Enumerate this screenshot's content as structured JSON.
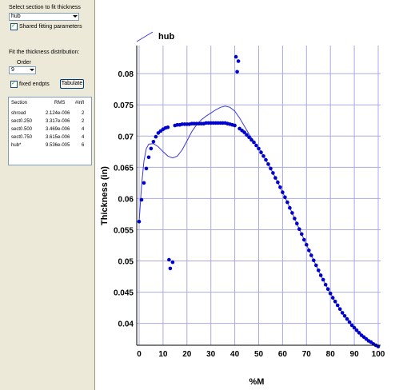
{
  "panel": {
    "select_label": "Select section to fit thickness",
    "section_value": "hub",
    "shared_label": "Shared fitting parameters",
    "fit_label": "Fit the thickness distribution:",
    "order_label": "Order",
    "order_value": "9",
    "fixed_label": "fixed endpts",
    "tabulate_label": "Tabulate",
    "table": {
      "headers": [
        "Section",
        "RMS",
        "#infl"
      ],
      "rows": [
        {
          "section": "shroud",
          "rms": "2.124e-006",
          "infl": "2"
        },
        {
          "section": "sect0.250",
          "rms": "3.317e-006",
          "infl": "2"
        },
        {
          "section": "sect0.500",
          "rms": "3.469e-006",
          "infl": "4"
        },
        {
          "section": "sect0.750",
          "rms": "3.615e-006",
          "infl": "4"
        },
        {
          "section": "hub*",
          "rms": "9.536e-005",
          "infl": "6"
        }
      ]
    }
  },
  "chart_data": {
    "type": "scatter",
    "xlabel": "%M",
    "ylabel": "Thickness (in)",
    "xlim": [
      -1,
      101
    ],
    "ylim": [
      0.0365,
      0.0845
    ],
    "xticks": [
      0,
      10,
      20,
      30,
      40,
      50,
      60,
      70,
      80,
      90,
      100
    ],
    "yticks": [
      0.04,
      0.045,
      0.05,
      0.055,
      0.06,
      0.065,
      0.07,
      0.075,
      0.08
    ],
    "ytick_labels": [
      "0.04",
      "0.045",
      "0.05",
      "0.055",
      "0.06",
      "0.065",
      "0.07",
      "0.075",
      "0.08"
    ],
    "grid": true,
    "legend": {
      "label": "hub",
      "placement": "top-left"
    },
    "colors": {
      "points": "#0000cc",
      "line": "#3a3ad8",
      "grid": "#ababe0"
    },
    "points": [
      [
        0,
        0.0563
      ],
      [
        1,
        0.0598
      ],
      [
        2,
        0.0625
      ],
      [
        3,
        0.0648
      ],
      [
        4,
        0.0666
      ],
      [
        5,
        0.068
      ],
      [
        6,
        0.0691
      ],
      [
        7,
        0.0699
      ],
      [
        8,
        0.0705
      ],
      [
        9,
        0.0708
      ],
      [
        10,
        0.0711
      ],
      [
        11,
        0.0713
      ],
      [
        12,
        0.0714
      ],
      [
        12.5,
        0.0502
      ],
      [
        13,
        0.0488
      ],
      [
        14,
        0.0498
      ],
      [
        15,
        0.0717
      ],
      [
        16,
        0.0718
      ],
      [
        17,
        0.0718
      ],
      [
        18,
        0.0719
      ],
      [
        19,
        0.0719
      ],
      [
        20,
        0.0719
      ],
      [
        21,
        0.0719
      ],
      [
        22,
        0.072
      ],
      [
        23,
        0.072
      ],
      [
        24,
        0.072
      ],
      [
        25,
        0.072
      ],
      [
        26,
        0.072
      ],
      [
        27,
        0.072
      ],
      [
        28,
        0.0721
      ],
      [
        29,
        0.0721
      ],
      [
        30,
        0.0721
      ],
      [
        31,
        0.0721
      ],
      [
        32,
        0.0721
      ],
      [
        33,
        0.0721
      ],
      [
        34,
        0.0721
      ],
      [
        35,
        0.0721
      ],
      [
        36,
        0.0721
      ],
      [
        37,
        0.072
      ],
      [
        38,
        0.0719
      ],
      [
        39,
        0.0718
      ],
      [
        40,
        0.0717
      ],
      [
        40.5,
        0.0827
      ],
      [
        41,
        0.0803
      ],
      [
        41.5,
        0.082
      ],
      [
        42,
        0.0712
      ],
      [
        43,
        0.0709
      ],
      [
        44,
        0.0706
      ],
      [
        45,
        0.0702
      ],
      [
        46,
        0.0698
      ],
      [
        47,
        0.0694
      ],
      [
        48,
        0.069
      ],
      [
        49,
        0.0685
      ],
      [
        50,
        0.068
      ],
      [
        51,
        0.0674
      ],
      [
        52,
        0.0668
      ],
      [
        53,
        0.0662
      ],
      [
        54,
        0.0655
      ],
      [
        55,
        0.0648
      ],
      [
        56,
        0.0641
      ],
      [
        57,
        0.0633
      ],
      [
        58,
        0.0626
      ],
      [
        59,
        0.0618
      ],
      [
        60,
        0.061
      ],
      [
        61,
        0.0602
      ],
      [
        62,
        0.0594
      ],
      [
        63,
        0.0585
      ],
      [
        64,
        0.0577
      ],
      [
        65,
        0.0568
      ],
      [
        66,
        0.056
      ],
      [
        67,
        0.0551
      ],
      [
        68,
        0.0543
      ],
      [
        69,
        0.0534
      ],
      [
        70,
        0.0526
      ],
      [
        71,
        0.0517
      ],
      [
        72,
        0.0509
      ],
      [
        73,
        0.0501
      ],
      [
        74,
        0.0493
      ],
      [
        75,
        0.0485
      ],
      [
        76,
        0.0477
      ],
      [
        77,
        0.047
      ],
      [
        78,
        0.0462
      ],
      [
        79,
        0.0455
      ],
      [
        80,
        0.0448
      ],
      [
        81,
        0.0441
      ],
      [
        82,
        0.0435
      ],
      [
        83,
        0.0429
      ],
      [
        84,
        0.0423
      ],
      [
        85,
        0.0417
      ],
      [
        86,
        0.0412
      ],
      [
        87,
        0.0407
      ],
      [
        88,
        0.0402
      ],
      [
        89,
        0.0397
      ],
      [
        90,
        0.0393
      ],
      [
        91,
        0.0389
      ],
      [
        92,
        0.0385
      ],
      [
        93,
        0.0381
      ],
      [
        94,
        0.0378
      ],
      [
        95,
        0.0375
      ],
      [
        96,
        0.0372
      ],
      [
        97,
        0.037
      ],
      [
        98,
        0.0367
      ],
      [
        99,
        0.0365
      ],
      [
        100,
        0.0363
      ]
    ],
    "fit_line": [
      [
        0,
        0.0563
      ],
      [
        1,
        0.062
      ],
      [
        2,
        0.066
      ],
      [
        3,
        0.068
      ],
      [
        4,
        0.0687
      ],
      [
        6,
        0.0688
      ],
      [
        8,
        0.0683
      ],
      [
        10,
        0.0675
      ],
      [
        12,
        0.0668
      ],
      [
        14,
        0.0665
      ],
      [
        16,
        0.0668
      ],
      [
        18,
        0.0678
      ],
      [
        20,
        0.0692
      ],
      [
        22,
        0.0707
      ],
      [
        24,
        0.0718
      ],
      [
        26,
        0.0726
      ],
      [
        28,
        0.0732
      ],
      [
        30,
        0.0737
      ],
      [
        32,
        0.0742
      ],
      [
        34,
        0.0746
      ],
      [
        36,
        0.0748
      ],
      [
        38,
        0.0746
      ],
      [
        40,
        0.074
      ],
      [
        42,
        0.0729
      ],
      [
        44,
        0.0716
      ],
      [
        46,
        0.0703
      ],
      [
        48,
        0.0691
      ],
      [
        50,
        0.068
      ],
      [
        52,
        0.0668
      ],
      [
        55,
        0.0648
      ],
      [
        58,
        0.0626
      ],
      [
        61,
        0.0602
      ],
      [
        64,
        0.0577
      ],
      [
        67,
        0.0551
      ],
      [
        70,
        0.0526
      ],
      [
        73,
        0.0501
      ],
      [
        76,
        0.0477
      ],
      [
        79,
        0.0455
      ],
      [
        82,
        0.0435
      ],
      [
        85,
        0.0417
      ],
      [
        88,
        0.0402
      ],
      [
        91,
        0.0389
      ],
      [
        94,
        0.0378
      ],
      [
        97,
        0.037
      ],
      [
        100,
        0.0363
      ]
    ]
  }
}
